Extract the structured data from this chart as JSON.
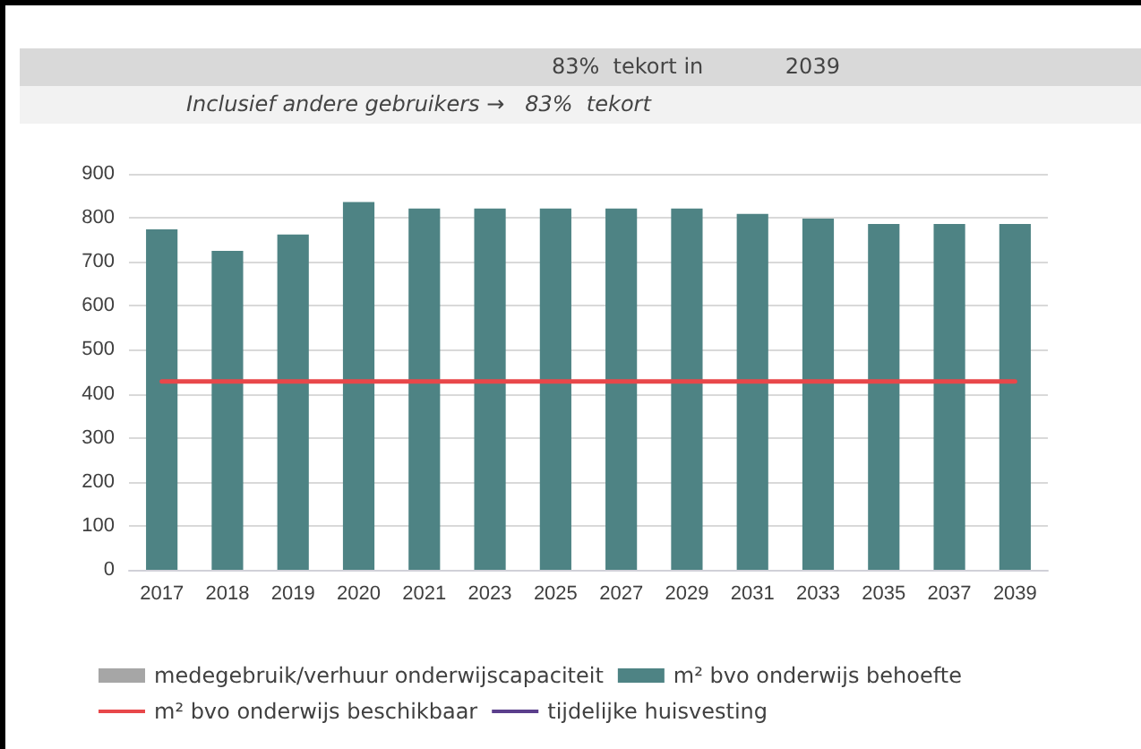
{
  "chart_data": {
    "type": "bar",
    "annotations": [
      "83%  tekort in            2039",
      "Inclusief andere gebruikers →   83%  tekort"
    ],
    "categories": [
      "2017",
      "2018",
      "2019",
      "2020",
      "2021",
      "2023",
      "2025",
      "2027",
      "2029",
      "2031",
      "2033",
      "2035",
      "2037",
      "2039"
    ],
    "series": [
      {
        "name": "medegebruik/verhuur onderwijscapaciteit",
        "color": "#a6a6a6",
        "values": [
          null,
          null,
          null,
          null,
          null,
          null,
          null,
          null,
          null,
          null,
          null,
          null,
          null,
          null
        ]
      },
      {
        "name": "m² bvo onderwijs behoefte",
        "color": "#4e8384",
        "values": [
          774,
          725,
          762,
          836,
          821,
          821,
          821,
          821,
          821,
          809,
          798,
          786,
          786,
          786
        ]
      },
      {
        "name": "m² bvo onderwijs beschikbaar",
        "type": "line",
        "color": "#e8474a",
        "values": [
          428,
          428,
          428,
          428,
          428,
          428,
          428,
          428,
          428,
          428,
          428,
          428,
          428,
          428
        ]
      },
      {
        "name": "tijdelijke huisvesting",
        "type": "line",
        "color": "#5b3f8c",
        "values": [
          null,
          null,
          null,
          null,
          null,
          null,
          null,
          null,
          null,
          null,
          null,
          null,
          null,
          null
        ]
      }
    ],
    "stacked": true,
    "marker": "none",
    "ylim": [
      0,
      900
    ],
    "yticks": [
      0,
      100,
      200,
      300,
      400,
      500,
      600,
      700,
      800,
      900
    ],
    "grid": "y",
    "legend": "bottom"
  }
}
